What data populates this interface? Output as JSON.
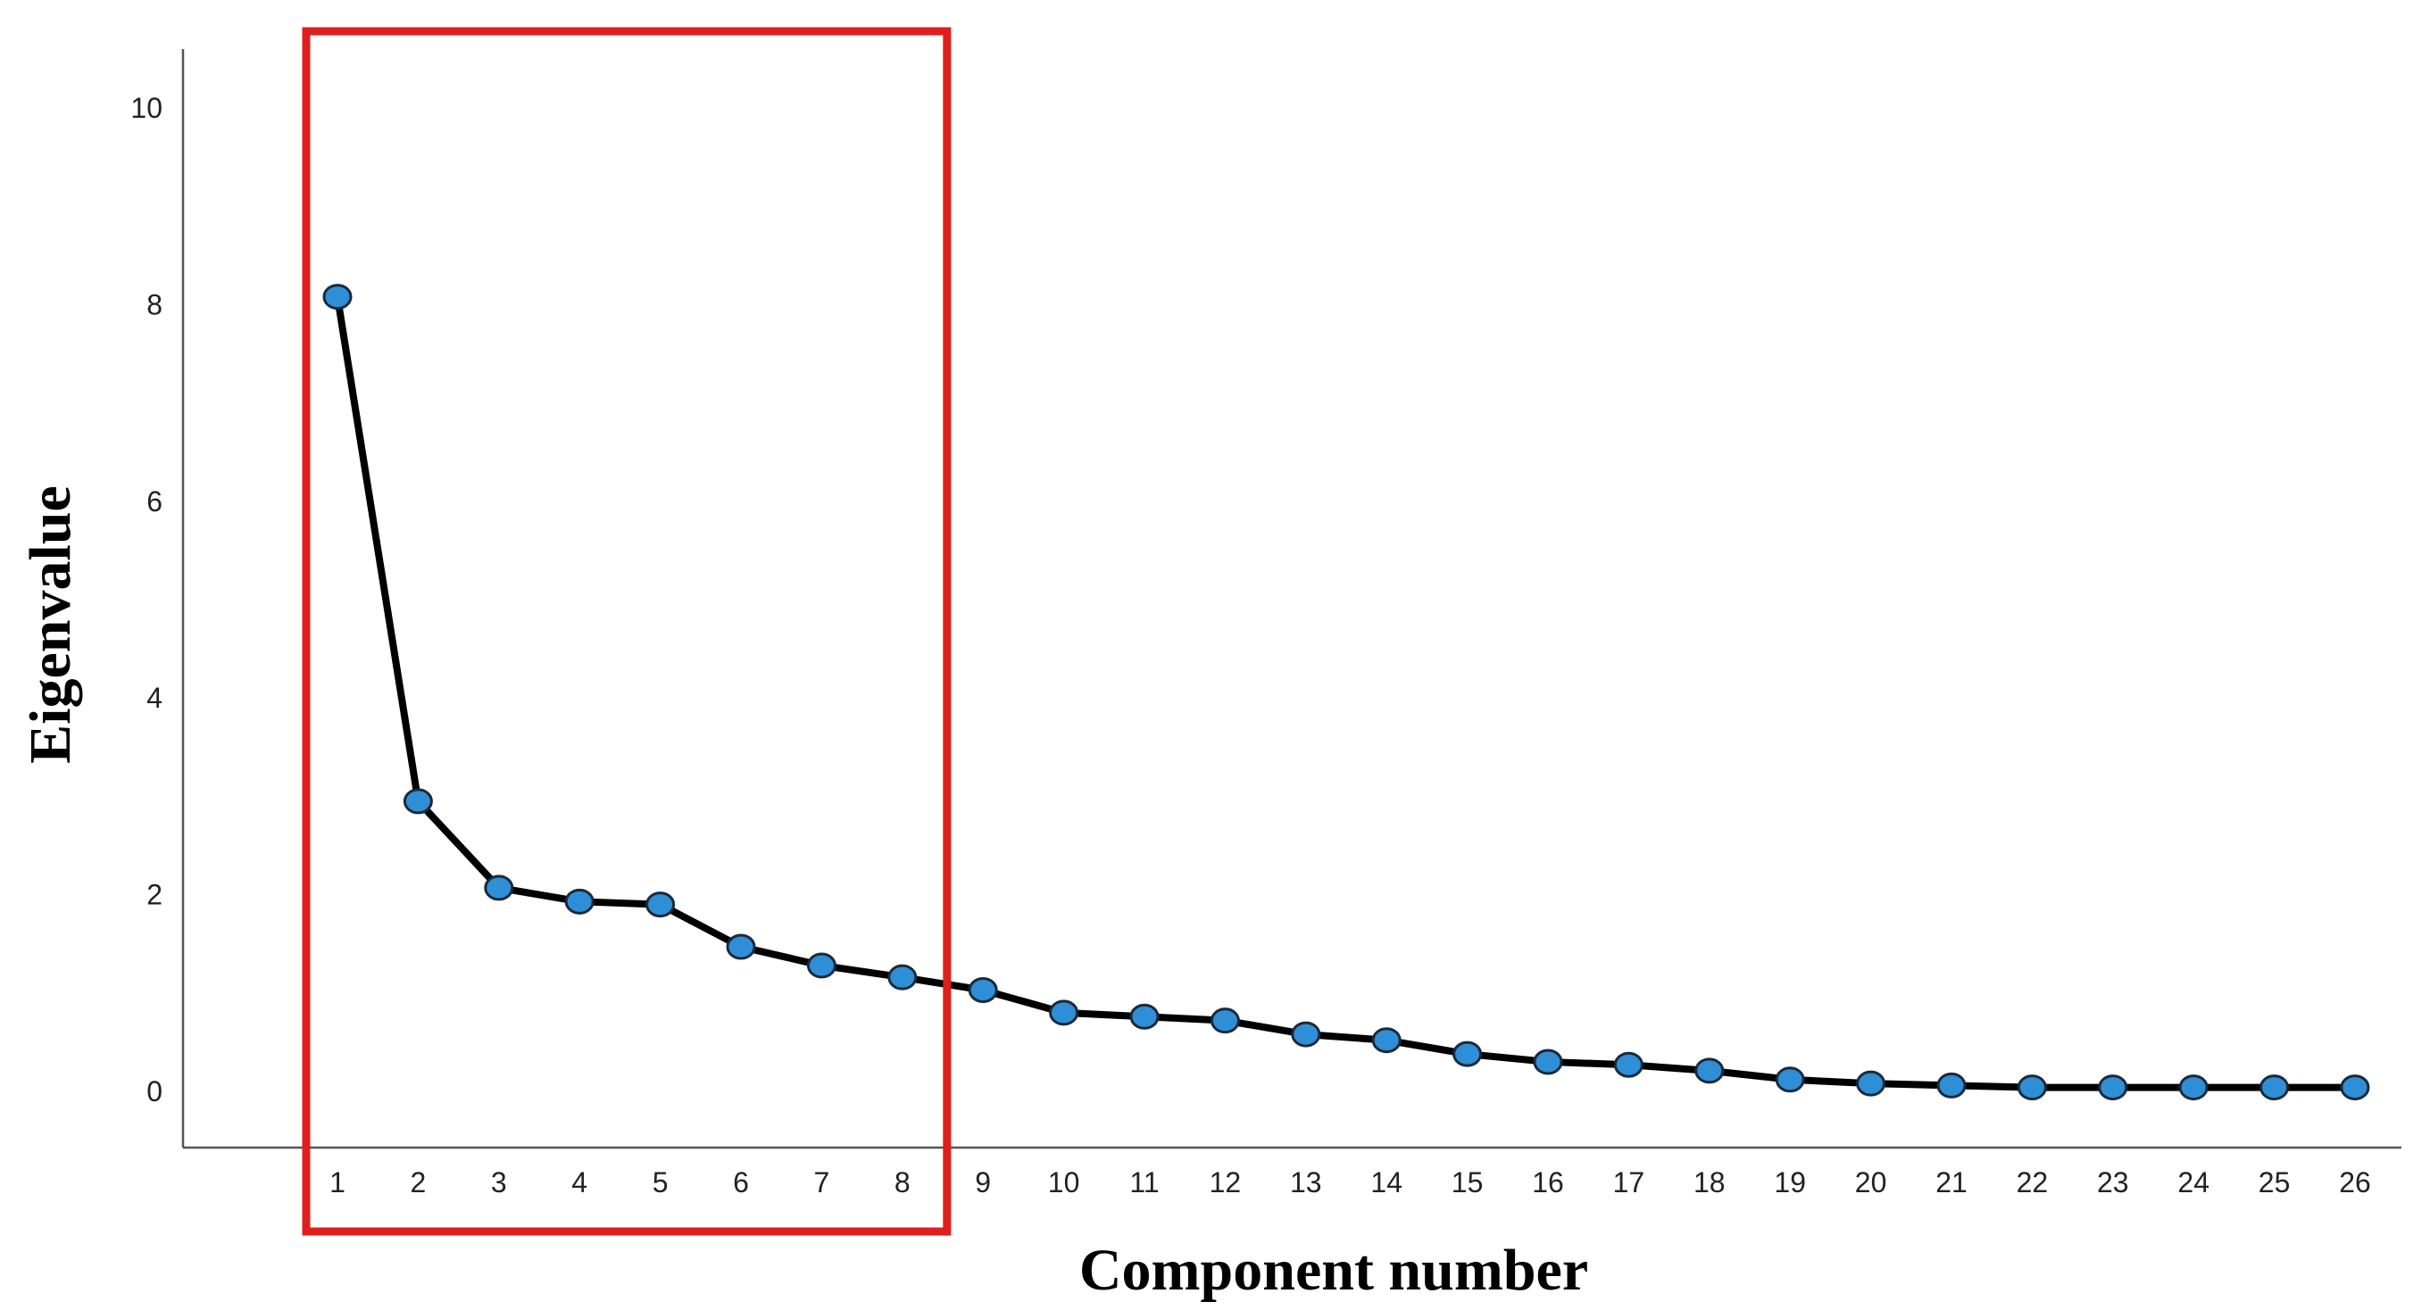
{
  "chart_data": {
    "type": "line",
    "title": "",
    "xlabel": "Component number",
    "ylabel": "Eigenvalue",
    "x": [
      1,
      2,
      3,
      4,
      5,
      6,
      7,
      8,
      9,
      10,
      11,
      12,
      13,
      14,
      15,
      16,
      17,
      18,
      19,
      20,
      21,
      22,
      23,
      24,
      25,
      26
    ],
    "x_tick_labels": [
      "1",
      "2",
      "3",
      "4",
      "5",
      "6",
      "7",
      "8",
      "9",
      "10",
      "11",
      "12",
      "13",
      "14",
      "15",
      "16",
      "17",
      "18",
      "19",
      "20",
      "21",
      "22",
      "23",
      "24",
      "25",
      "26"
    ],
    "series": [
      {
        "values": [
          8.08,
          2.95,
          2.07,
          1.93,
          1.9,
          1.47,
          1.28,
          1.16,
          1.03,
          0.8,
          0.76,
          0.72,
          0.58,
          0.52,
          0.38,
          0.3,
          0.27,
          0.21,
          0.12,
          0.08,
          0.06,
          0.04,
          0.04,
          0.04,
          0.04,
          0.04
        ],
        "line_color": "#000000",
        "marker_color": "#2f8fd6",
        "marker_edge_color": "#1a2a3a"
      }
    ],
    "y_ticks": [
      0,
      2,
      4,
      6,
      8,
      10
    ],
    "ylim": [
      0,
      10.5
    ],
    "grid": false,
    "highlight": {
      "x_range": [
        1,
        8
      ],
      "color": "#e01e1e"
    }
  }
}
